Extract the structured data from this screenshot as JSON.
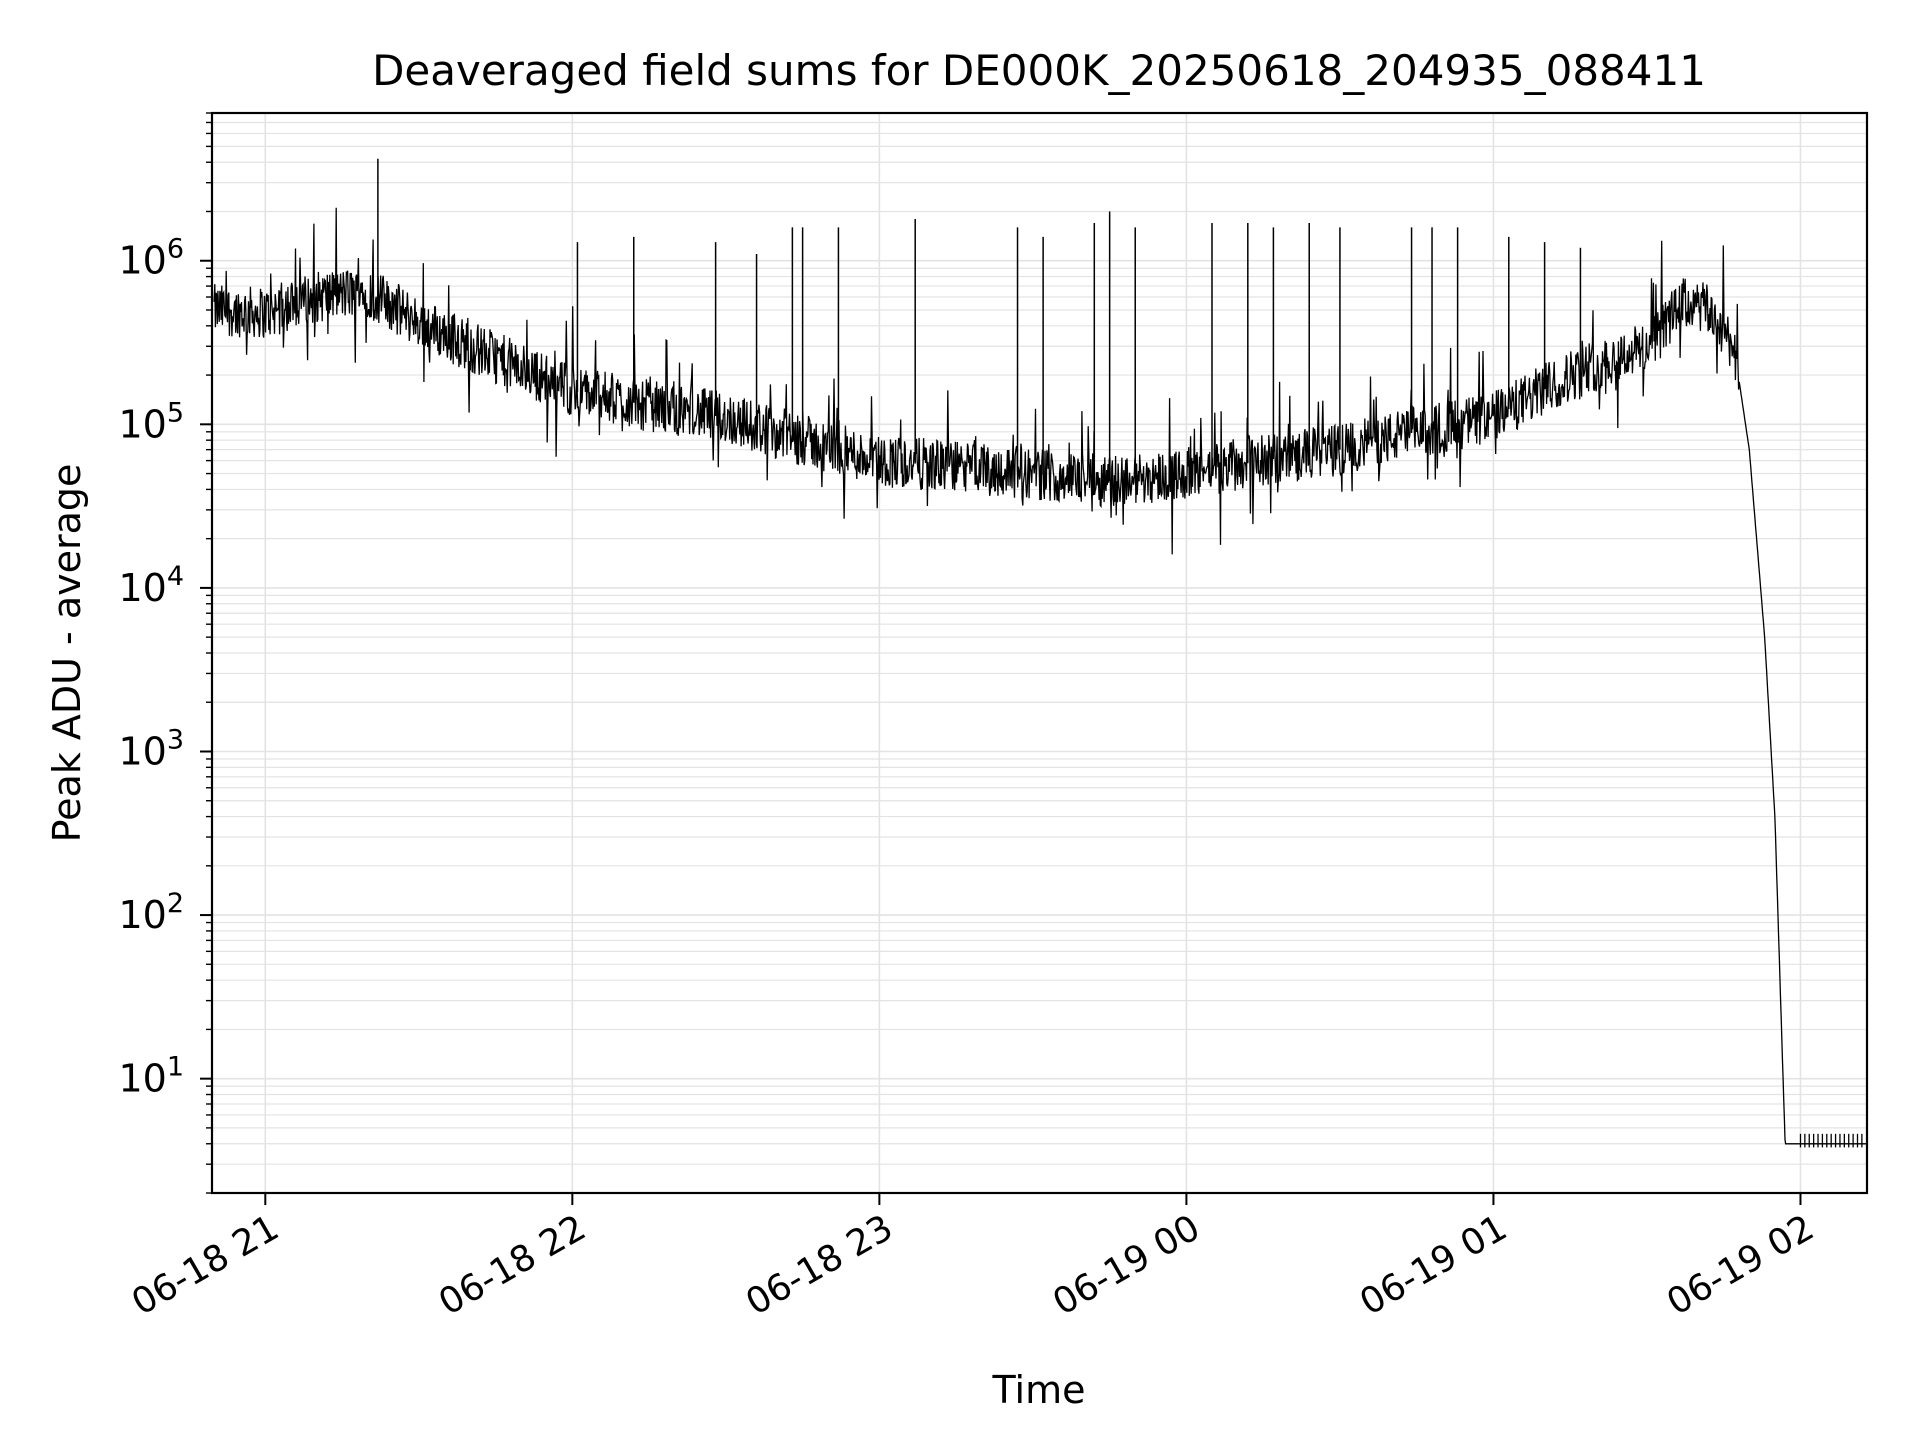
{
  "chart_data": {
    "type": "line",
    "title": "Deaveraged field sums for DE000K_20250618_204935_088411",
    "xlabel": "Time",
    "ylabel": "Peak ADU - average",
    "yscale": "log",
    "ylim": [
      2,
      8000000
    ],
    "xlim": [
      "2025-06-18 20:49:35",
      "2025-06-19 02:13:00"
    ],
    "grid": true,
    "x_ticks": [
      {
        "label": "06-18 21",
        "time": "2025-06-18 21:00"
      },
      {
        "label": "06-18 22",
        "time": "2025-06-18 22:00"
      },
      {
        "label": "06-18 23",
        "time": "2025-06-18 23:00"
      },
      {
        "label": "06-19 00",
        "time": "2025-06-19 00:00"
      },
      {
        "label": "06-19 01",
        "time": "2025-06-19 01:00"
      },
      {
        "label": "06-19 02",
        "time": "2025-06-19 02:00"
      }
    ],
    "y_ticks": [
      {
        "base": "10",
        "exp": "1",
        "value": 10
      },
      {
        "base": "10",
        "exp": "2",
        "value": 100
      },
      {
        "base": "10",
        "exp": "3",
        "value": 1000
      },
      {
        "base": "10",
        "exp": "4",
        "value": 10000
      },
      {
        "base": "10",
        "exp": "5",
        "value": 100000
      },
      {
        "base": "10",
        "exp": "6",
        "value": 1000000
      }
    ],
    "series": [
      {
        "color": "#000000",
        "x": [
          "2025-06-18 20:50",
          "2025-06-18 21:00",
          "2025-06-18 21:10",
          "2025-06-18 21:20",
          "2025-06-18 21:30",
          "2025-06-18 21:40",
          "2025-06-18 21:50",
          "2025-06-18 22:00",
          "2025-06-18 22:15",
          "2025-06-18 22:30",
          "2025-06-18 22:45",
          "2025-06-18 23:00",
          "2025-06-18 23:15",
          "2025-06-18 23:30",
          "2025-06-18 23:45",
          "2025-06-19 00:00",
          "2025-06-19 00:15",
          "2025-06-19 00:30",
          "2025-06-19 00:45",
          "2025-06-19 01:00",
          "2025-06-19 01:15",
          "2025-06-19 01:30",
          "2025-06-19 01:37",
          "2025-06-19 01:42",
          "2025-06-19 01:47",
          "2025-06-19 01:50",
          "2025-06-19 01:53",
          "2025-06-19 01:55",
          "2025-06-19 01:57",
          "2025-06-19 02:13"
        ],
        "y": [
          500000,
          480000,
          600000,
          650000,
          420000,
          300000,
          220000,
          160000,
          130000,
          110000,
          80000,
          60000,
          55000,
          50000,
          45000,
          50000,
          60000,
          70000,
          90000,
          110000,
          200000,
          300000,
          550000,
          500000,
          300000,
          70000,
          5000,
          400,
          4,
          4
        ]
      }
    ],
    "spikes": [
      {
        "x": "2025-06-18 21:22",
        "y": 4200000
      },
      {
        "x": "2025-06-18 22:01",
        "y": 1300000
      },
      {
        "x": "2025-06-18 22:12",
        "y": 1400000
      },
      {
        "x": "2025-06-18 22:28",
        "y": 1300000
      },
      {
        "x": "2025-06-18 22:36",
        "y": 1100000
      },
      {
        "x": "2025-06-18 22:43",
        "y": 1600000
      },
      {
        "x": "2025-06-18 22:45",
        "y": 1600000
      },
      {
        "x": "2025-06-18 22:52",
        "y": 1600000
      },
      {
        "x": "2025-06-18 23:07",
        "y": 1800000
      },
      {
        "x": "2025-06-18 23:27",
        "y": 1600000
      },
      {
        "x": "2025-06-18 23:32",
        "y": 1400000
      },
      {
        "x": "2025-06-18 23:42",
        "y": 1700000
      },
      {
        "x": "2025-06-18 23:45",
        "y": 2000000
      },
      {
        "x": "2025-06-18 23:50",
        "y": 1600000
      },
      {
        "x": "2025-06-19 00:05",
        "y": 1700000
      },
      {
        "x": "2025-06-19 00:12",
        "y": 1700000
      },
      {
        "x": "2025-06-19 00:17",
        "y": 1600000
      },
      {
        "x": "2025-06-19 00:24",
        "y": 1700000
      },
      {
        "x": "2025-06-19 00:30",
        "y": 1600000
      },
      {
        "x": "2025-06-19 00:44",
        "y": 1600000
      },
      {
        "x": "2025-06-19 00:48",
        "y": 1600000
      },
      {
        "x": "2025-06-19 00:53",
        "y": 1600000
      },
      {
        "x": "2025-06-19 01:03",
        "y": 1400000
      },
      {
        "x": "2025-06-19 01:10",
        "y": 1300000
      },
      {
        "x": "2025-06-19 01:17",
        "y": 1200000
      }
    ],
    "tail_spikes": {
      "x": [
        "2025-06-19 02:00",
        "2025-06-19 02:12"
      ],
      "count": 15,
      "low": 3.8,
      "high": 4.6
    }
  }
}
